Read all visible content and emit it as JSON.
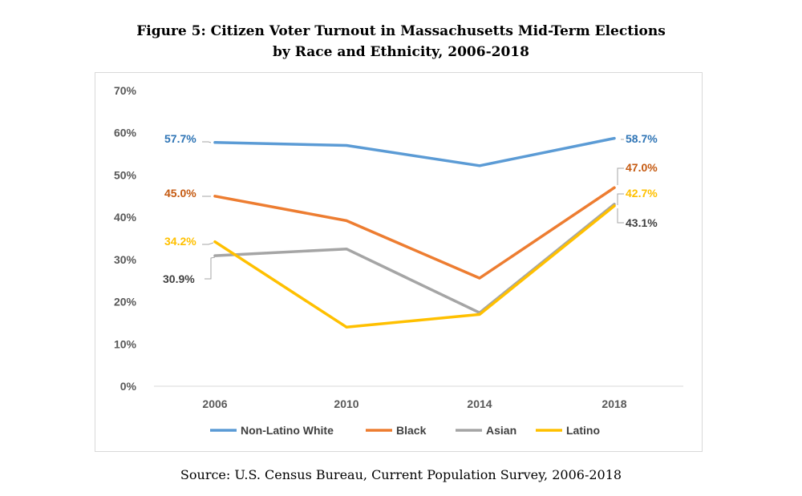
{
  "chart_data": {
    "type": "line",
    "title_line1": "Figure 5: Citizen Voter Turnout in Massachusetts Mid-Term Elections",
    "title_line2": "by Race and Ethnicity, 2006-2018",
    "source": "Source: U.S. Census Bureau, Current Population Survey, 2006-2018",
    "categories": [
      "2006",
      "2010",
      "2014",
      "2018"
    ],
    "ylim": [
      0,
      70
    ],
    "yticks": [
      "0%",
      "10%",
      "20%",
      "30%",
      "40%",
      "50%",
      "60%",
      "70%"
    ],
    "grid": false,
    "legend_position": "bottom",
    "series": [
      {
        "name": "Non-Latino White",
        "color": "#5b9bd5",
        "values": [
          57.7,
          57.0,
          52.2,
          58.7
        ],
        "labels": {
          "start": "57.7%",
          "end": "58.7%"
        },
        "label_color": "#2e74b5"
      },
      {
        "name": "Black",
        "color": "#ed7d31",
        "values": [
          45.0,
          39.2,
          25.6,
          47.0
        ],
        "labels": {
          "start": "45.0%",
          "end": "47.0%"
        },
        "label_color": "#c55a11"
      },
      {
        "name": "Asian",
        "color": "#a5a5a5",
        "values": [
          30.9,
          32.5,
          17.4,
          43.1
        ],
        "labels": {
          "start": "30.9%",
          "end": "43.1%"
        },
        "label_color": "#404040"
      },
      {
        "name": "Latino",
        "color": "#ffc000",
        "values": [
          34.2,
          14.0,
          17.0,
          42.7
        ],
        "labels": {
          "start": "34.2%",
          "end": "42.7%"
        },
        "label_color": "#ffc000"
      }
    ]
  }
}
